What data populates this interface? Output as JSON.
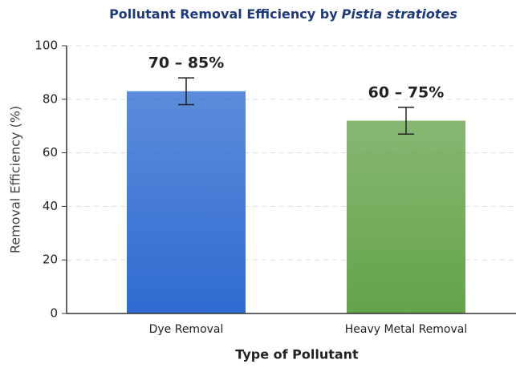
{
  "chart_data": {
    "type": "bar",
    "title": [
      "Pollutant Removal Efficiency by",
      "Pistia stratiotes"
    ],
    "xlabel": "Type of Pollutant",
    "ylabel": "Removal Efficiency (%)",
    "categories": [
      "Dye Removal",
      "Heavy Metal Removal"
    ],
    "values": [
      83,
      72
    ],
    "errors": [
      5,
      5
    ],
    "annotations": [
      "70 – 85%",
      "60 – 75%"
    ],
    "colors": [
      "#2f6bd1",
      "#64a34a"
    ],
    "ylim": [
      0,
      100
    ],
    "yticks": [
      0,
      20,
      40,
      60,
      80,
      100
    ],
    "grid": true
  }
}
